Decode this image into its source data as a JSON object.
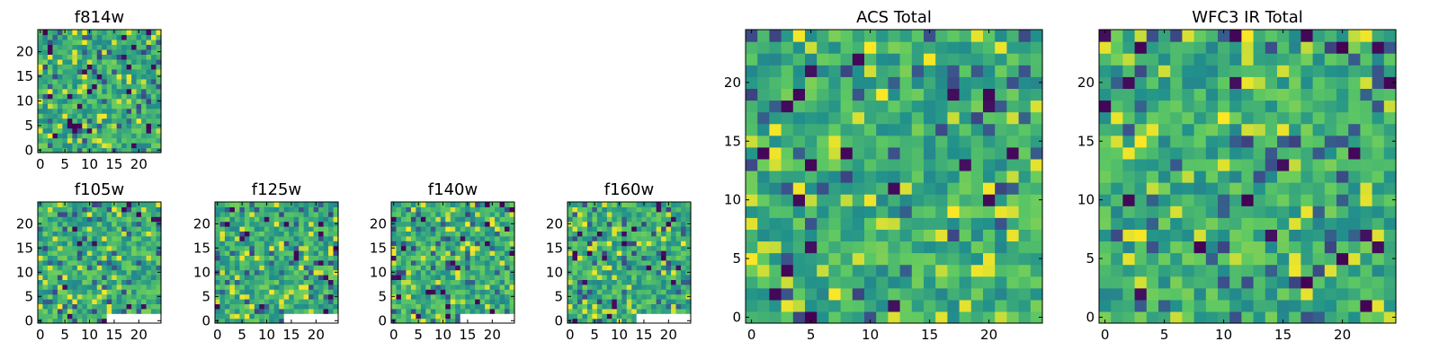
{
  "colormap": [
    "#440154",
    "#3b528b",
    "#21918c",
    "#5ec962",
    "#fde725"
  ],
  "figure_background": "#ffffff",
  "chart_data": [
    {
      "type": "heatmap",
      "title": "f814w",
      "xlim": [
        0,
        24
      ],
      "ylim": [
        0,
        24
      ],
      "xticks": [
        0,
        5,
        10,
        15,
        20
      ],
      "yticks": [
        0,
        5,
        10,
        15,
        20
      ],
      "missing": "none",
      "colorscale": "viridis"
    },
    {
      "type": "heatmap",
      "title": "f105w",
      "xlim": [
        0,
        24
      ],
      "ylim": [
        0,
        24
      ],
      "xticks": [
        0,
        5,
        10,
        15,
        20
      ],
      "yticks": [
        0,
        5,
        10,
        15,
        20
      ],
      "missing": "bottom-right",
      "colorscale": "viridis"
    },
    {
      "type": "heatmap",
      "title": "f125w",
      "xlim": [
        0,
        24
      ],
      "ylim": [
        0,
        24
      ],
      "xticks": [
        0,
        5,
        10,
        15,
        20
      ],
      "yticks": [
        0,
        5,
        10,
        15,
        20
      ],
      "missing": "bottom-right",
      "colorscale": "viridis"
    },
    {
      "type": "heatmap",
      "title": "f140w",
      "xlim": [
        0,
        24
      ],
      "ylim": [
        0,
        24
      ],
      "xticks": [
        0,
        5,
        10,
        15,
        20
      ],
      "yticks": [
        0,
        5,
        10,
        15,
        20
      ],
      "missing": "bottom-right",
      "colorscale": "viridis"
    },
    {
      "type": "heatmap",
      "title": "f160w",
      "xlim": [
        0,
        24
      ],
      "ylim": [
        0,
        24
      ],
      "xticks": [
        0,
        5,
        10,
        15,
        20
      ],
      "yticks": [
        0,
        5,
        10,
        15,
        20
      ],
      "missing": "bottom-right",
      "colorscale": "viridis"
    },
    {
      "type": "heatmap",
      "title": "ACS Total",
      "xlim": [
        0,
        24
      ],
      "ylim": [
        0,
        24
      ],
      "xticks": [
        0,
        5,
        10,
        15,
        20
      ],
      "yticks": [
        0,
        5,
        10,
        15,
        20
      ],
      "missing": "none",
      "colorscale": "viridis"
    },
    {
      "type": "heatmap",
      "title": "WFC3 IR Total",
      "xlim": [
        0,
        24
      ],
      "ylim": [
        0,
        24
      ],
      "xticks": [
        0,
        5,
        10,
        15,
        20
      ],
      "yticks": [
        0,
        5,
        10,
        15,
        20
      ],
      "missing": "none",
      "colorscale": "viridis"
    }
  ]
}
